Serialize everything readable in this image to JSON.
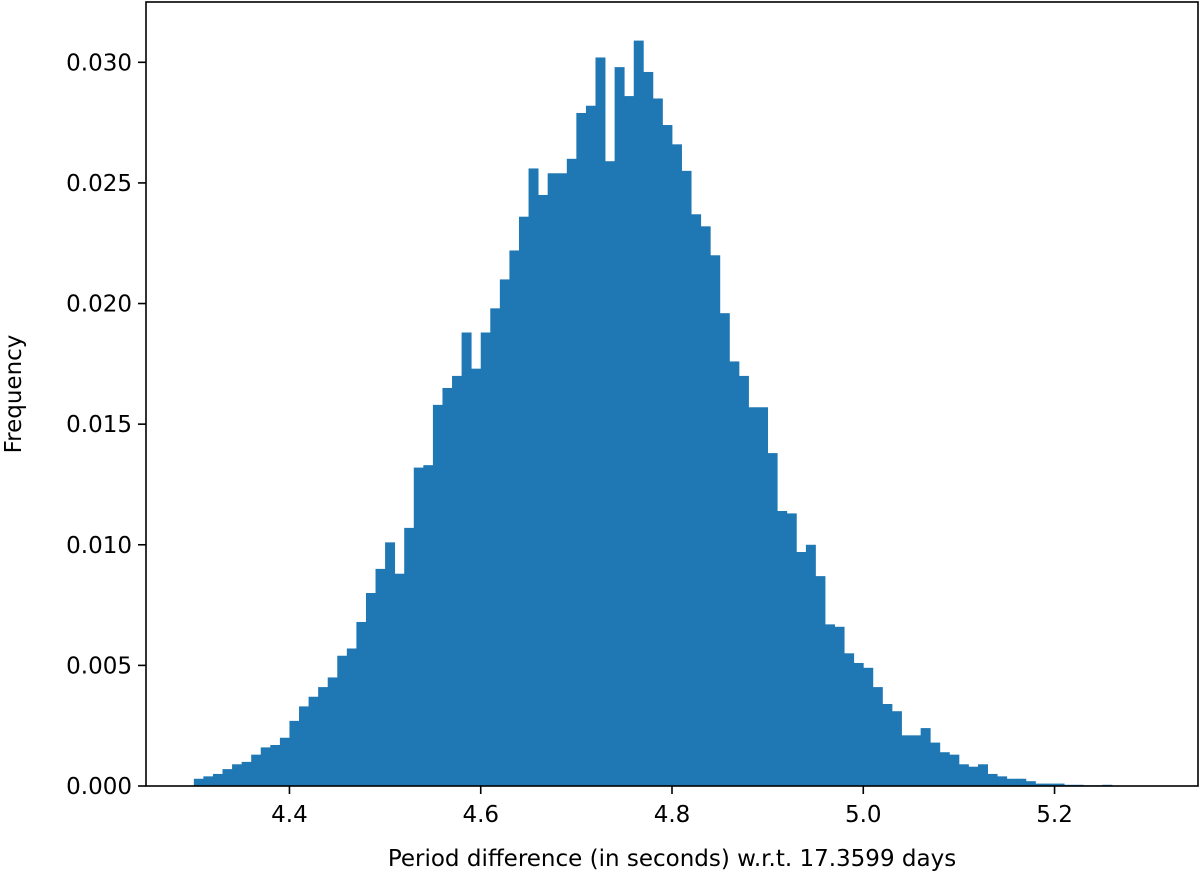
{
  "chart_data": {
    "type": "bar",
    "title": "",
    "xlabel": "Period difference (in seconds) w.r.t. 17.3599 days",
    "ylabel": "Frequency",
    "xlim": [
      4.25,
      5.35
    ],
    "ylim": [
      0,
      0.0325
    ],
    "x_ticks": [
      "4.4",
      "4.6",
      "4.8",
      "5.0",
      "5.2"
    ],
    "x_tick_values": [
      4.4,
      4.6,
      4.8,
      5.0,
      5.2
    ],
    "y_ticks": [
      "0.000",
      "0.005",
      "0.010",
      "0.015",
      "0.020",
      "0.025",
      "0.030"
    ],
    "y_tick_values": [
      0.0,
      0.005,
      0.01,
      0.015,
      0.02,
      0.025,
      0.03
    ],
    "grid": false,
    "bar_color": "#1f77b4",
    "bin_start": 4.3,
    "bin_width": 0.01,
    "values": [
      0.0003,
      0.0004,
      0.0005,
      0.0007,
      0.0009,
      0.001,
      0.0013,
      0.0016,
      0.0017,
      0.002,
      0.0027,
      0.0033,
      0.0037,
      0.0041,
      0.0045,
      0.0054,
      0.0057,
      0.0068,
      0.008,
      0.009,
      0.0101,
      0.0088,
      0.0107,
      0.0132,
      0.0133,
      0.0158,
      0.0165,
      0.017,
      0.0188,
      0.0173,
      0.0188,
      0.0198,
      0.021,
      0.0222,
      0.0236,
      0.0256,
      0.0245,
      0.0254,
      0.0254,
      0.026,
      0.0279,
      0.0282,
      0.0302,
      0.0259,
      0.0298,
      0.0286,
      0.0309,
      0.0296,
      0.0285,
      0.0274,
      0.0266,
      0.0255,
      0.0237,
      0.0232,
      0.022,
      0.0196,
      0.0176,
      0.017,
      0.0157,
      0.0157,
      0.0138,
      0.0114,
      0.0113,
      0.0097,
      0.01,
      0.0087,
      0.0067,
      0.0066,
      0.0055,
      0.0051,
      0.0049,
      0.0041,
      0.0034,
      0.0031,
      0.0021,
      0.0021,
      0.0024,
      0.0018,
      0.0014,
      0.0013,
      0.0009,
      0.0008,
      0.0009,
      0.0005,
      0.0004,
      0.0003,
      0.0003,
      0.0002,
      0.0001,
      0.0001,
      0.0001,
      5e-05,
      5e-05,
      3e-05,
      3e-05,
      5e-05,
      2e-05,
      2e-05,
      1e-05,
      1e-05
    ]
  }
}
